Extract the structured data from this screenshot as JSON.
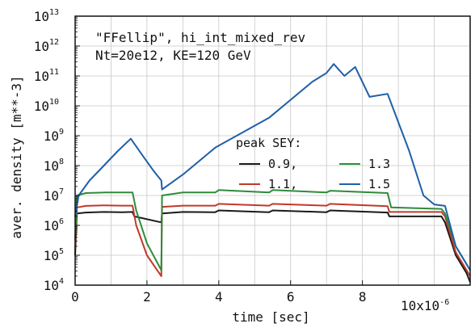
{
  "chart_data": {
    "type": "line",
    "xlabel": "time [sec]",
    "ylabel": "aver. density [m**-3]",
    "x_scale_label": "10x10",
    "x_scale_exp": "-6",
    "xlim": [
      0,
      11
    ],
    "ylim_log10": [
      4,
      13
    ],
    "ylog": true,
    "grid": true,
    "x_ticks": [
      0,
      2,
      4,
      6,
      8
    ],
    "x_tick_labels": [
      "0",
      "2",
      "4",
      "6",
      "8"
    ],
    "y_ticks": [
      4,
      5,
      6,
      7,
      8,
      9,
      10,
      11,
      12,
      13
    ],
    "y_tick_base": "10",
    "y_tick_exps": [
      "4",
      "5",
      "6",
      "7",
      "8",
      "9",
      "10",
      "11",
      "12",
      "13"
    ],
    "annotations": [
      "\"FFellip\", hi_int_mixed_rev",
      "Nt=20e12, KE=120 GeV"
    ],
    "legend_title": "peak SEY:",
    "legend_position": "center-right",
    "series": [
      {
        "name": "0.9,",
        "color": "#1a1a1a",
        "x": [
          0,
          0.05,
          0.3,
          0.8,
          1.3,
          1.6,
          1.65,
          2.4,
          2.42,
          3.0,
          3.9,
          4.0,
          5.4,
          5.5,
          7.0,
          7.1,
          8.7,
          8.75,
          10.2,
          10.3,
          10.6,
          10.9,
          11.0
        ],
        "y": [
          5.0,
          6.4,
          6.43,
          6.45,
          6.44,
          6.45,
          6.3,
          6.1,
          6.4,
          6.45,
          6.44,
          6.5,
          6.44,
          6.5,
          6.44,
          6.5,
          6.43,
          6.3,
          6.3,
          6.1,
          5.0,
          4.4,
          4.1
        ]
      },
      {
        "name": "1.1,",
        "color": "#c0392b",
        "x": [
          0,
          0.05,
          0.3,
          0.8,
          1.3,
          1.6,
          1.7,
          2.0,
          2.4,
          2.42,
          3.0,
          3.9,
          4.0,
          5.4,
          5.5,
          7.0,
          7.1,
          8.7,
          8.75,
          10.2,
          10.3,
          10.6,
          10.9,
          11.0
        ],
        "y": [
          5.2,
          6.6,
          6.65,
          6.67,
          6.66,
          6.66,
          6.0,
          5.0,
          4.3,
          6.62,
          6.66,
          6.66,
          6.72,
          6.66,
          6.72,
          6.66,
          6.72,
          6.64,
          6.45,
          6.45,
          6.3,
          5.1,
          4.5,
          4.3
        ]
      },
      {
        "name": "1.3",
        "color": "#2e8b3a",
        "x": [
          0,
          0.05,
          0.3,
          0.8,
          1.3,
          1.6,
          1.7,
          2.0,
          2.4,
          2.42,
          3.0,
          3.9,
          4.0,
          5.4,
          5.5,
          7.0,
          7.1,
          8.7,
          8.8,
          10.2,
          10.3,
          10.6,
          10.9,
          11.0
        ],
        "y": [
          5.5,
          7.0,
          7.08,
          7.1,
          7.1,
          7.1,
          6.5,
          5.4,
          4.5,
          7.0,
          7.1,
          7.1,
          7.18,
          7.1,
          7.18,
          7.1,
          7.16,
          7.08,
          6.6,
          6.55,
          6.4,
          5.3,
          4.7,
          4.5
        ]
      },
      {
        "name": "1.5",
        "color": "#1f5fa8",
        "x": [
          0,
          0.1,
          0.4,
          0.8,
          1.2,
          1.55,
          1.9,
          2.2,
          2.4,
          2.42,
          3.0,
          3.9,
          4.5,
          5.4,
          6.0,
          6.6,
          7.0,
          7.2,
          7.5,
          7.8,
          8.2,
          8.7,
          9.3,
          9.7,
          10.0,
          10.3,
          10.6,
          10.9,
          11.0
        ],
        "y": [
          6.3,
          7.0,
          7.5,
          8.0,
          8.5,
          8.9,
          8.3,
          7.8,
          7.5,
          7.2,
          7.7,
          8.6,
          9.0,
          9.6,
          10.2,
          10.8,
          11.1,
          11.4,
          11.0,
          11.3,
          10.3,
          10.4,
          8.5,
          7.0,
          6.7,
          6.65,
          5.3,
          4.7,
          4.5
        ]
      }
    ]
  }
}
